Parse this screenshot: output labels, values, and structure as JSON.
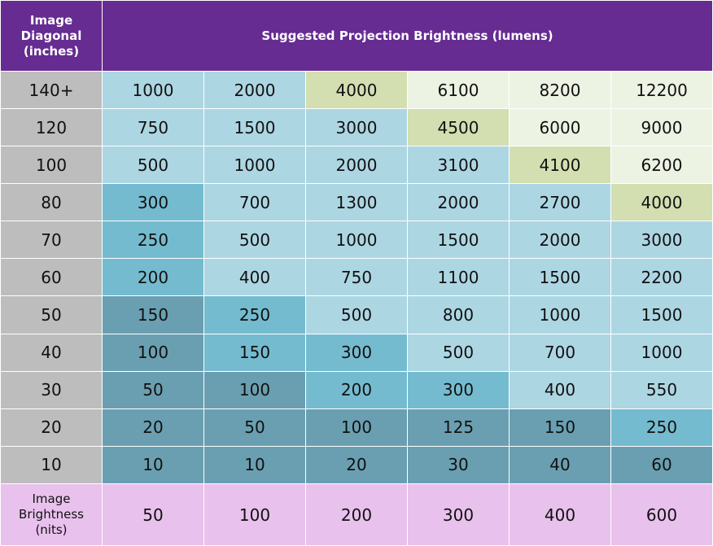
{
  "header": {
    "corner_lines": [
      "Image",
      "Diagonal",
      "(inches)"
    ],
    "title": "Suggested Projection Brightness (lumens)"
  },
  "footer": {
    "label_lines": [
      "Image",
      "Brightness",
      "(nits)"
    ],
    "values": [
      "50",
      "100",
      "200",
      "300",
      "400",
      "600"
    ]
  },
  "colors": {
    "header_bg": "#662c91",
    "row_header_bg": "#bdbdbd",
    "footer_bg": "#e9c1ed",
    "mid_blue": "#add6e3",
    "bright_blue": "#75bbcf",
    "dark_teal": "#6a9fb1",
    "green": "#d3deb1",
    "pale_green": "#edf3e3"
  },
  "chart_data": {
    "type": "table",
    "title": "Suggested Projection Brightness (lumens)",
    "row_header_title": "Image Diagonal (inches)",
    "column_header_title": "Image Brightness (nits)",
    "columns": [
      "50",
      "100",
      "200",
      "300",
      "400",
      "600"
    ],
    "rows": [
      {
        "label": "140+",
        "values": [
          "1000",
          "2000",
          "4000",
          "6100",
          "8200",
          "12200"
        ],
        "shades": [
          "mid_blue",
          "mid_blue",
          "green",
          "pale_green",
          "pale_green",
          "pale_green"
        ]
      },
      {
        "label": "120",
        "values": [
          "750",
          "1500",
          "3000",
          "4500",
          "6000",
          "9000"
        ],
        "shades": [
          "mid_blue",
          "mid_blue",
          "mid_blue",
          "green",
          "pale_green",
          "pale_green"
        ]
      },
      {
        "label": "100",
        "values": [
          "500",
          "1000",
          "2000",
          "3100",
          "4100",
          "6200"
        ],
        "shades": [
          "mid_blue",
          "mid_blue",
          "mid_blue",
          "mid_blue",
          "green",
          "pale_green"
        ]
      },
      {
        "label": "80",
        "values": [
          "300",
          "700",
          "1300",
          "2000",
          "2700",
          "4000"
        ],
        "shades": [
          "bright_blue",
          "mid_blue",
          "mid_blue",
          "mid_blue",
          "mid_blue",
          "green"
        ]
      },
      {
        "label": "70",
        "values": [
          "250",
          "500",
          "1000",
          "1500",
          "2000",
          "3000"
        ],
        "shades": [
          "bright_blue",
          "mid_blue",
          "mid_blue",
          "mid_blue",
          "mid_blue",
          "mid_blue"
        ]
      },
      {
        "label": "60",
        "values": [
          "200",
          "400",
          "750",
          "1100",
          "1500",
          "2200"
        ],
        "shades": [
          "bright_blue",
          "mid_blue",
          "mid_blue",
          "mid_blue",
          "mid_blue",
          "mid_blue"
        ]
      },
      {
        "label": "50",
        "values": [
          "150",
          "250",
          "500",
          "800",
          "1000",
          "1500"
        ],
        "shades": [
          "dark_teal",
          "bright_blue",
          "mid_blue",
          "mid_blue",
          "mid_blue",
          "mid_blue"
        ]
      },
      {
        "label": "40",
        "values": [
          "100",
          "150",
          "300",
          "500",
          "700",
          "1000"
        ],
        "shades": [
          "dark_teal",
          "bright_blue",
          "bright_blue",
          "mid_blue",
          "mid_blue",
          "mid_blue"
        ]
      },
      {
        "label": "30",
        "values": [
          "50",
          "100",
          "200",
          "300",
          "400",
          "550"
        ],
        "shades": [
          "dark_teal",
          "dark_teal",
          "bright_blue",
          "bright_blue",
          "mid_blue",
          "mid_blue"
        ]
      },
      {
        "label": "20",
        "values": [
          "20",
          "50",
          "100",
          "125",
          "150",
          "250"
        ],
        "shades": [
          "dark_teal",
          "dark_teal",
          "dark_teal",
          "dark_teal",
          "dark_teal",
          "bright_blue"
        ]
      },
      {
        "label": "10",
        "values": [
          "10",
          "10",
          "20",
          "30",
          "40",
          "60"
        ],
        "shades": [
          "dark_teal",
          "dark_teal",
          "dark_teal",
          "dark_teal",
          "dark_teal",
          "dark_teal"
        ]
      }
    ]
  }
}
